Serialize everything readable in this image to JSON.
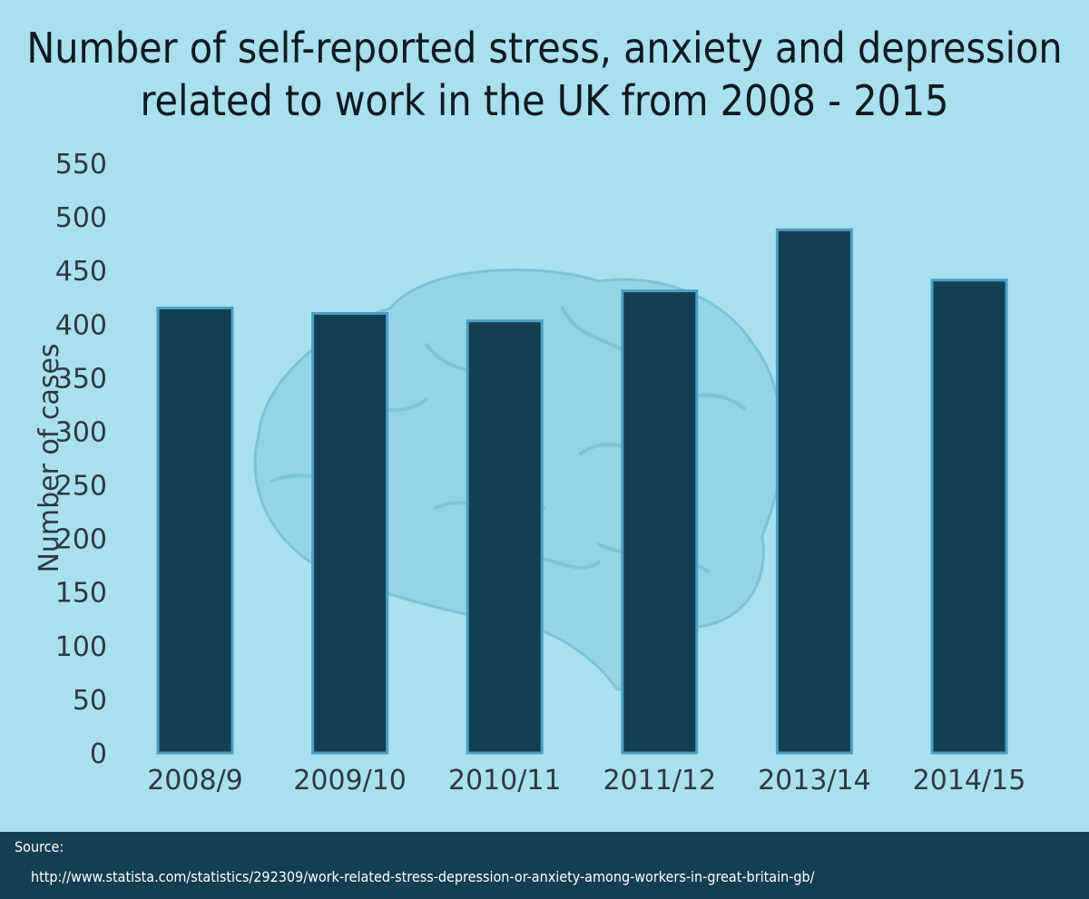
{
  "chart_data": {
    "type": "bar",
    "title_lines": [
      "Number of self-reported stress, anxiety and depression",
      "related to work in the UK from 2008 - 2015"
    ],
    "xlabel": "",
    "ylabel": "Number of cases",
    "categories": [
      "2008/9",
      "2009/10",
      "2010/11",
      "2011/12",
      "2013/14",
      "2014/15"
    ],
    "values": [
      415,
      410,
      403,
      431,
      488,
      441
    ],
    "ylim": [
      0,
      550
    ],
    "yticks": [
      0,
      50,
      100,
      150,
      200,
      250,
      300,
      350,
      400,
      450,
      500,
      550
    ],
    "grid": false,
    "legend": "none",
    "colors": {
      "bar": "#133f52",
      "bar_outline": "#4d9ec0",
      "background": "#a8e0ed",
      "brain": "#86c9dd"
    }
  },
  "source": {
    "label": "Source:",
    "url": "http://www.statista.com/statistics/292309/work-related-stress-depression-or-anxiety-among-workers-in-great-britain-gb/"
  },
  "icons": {
    "background_illustration": "brain-icon"
  }
}
